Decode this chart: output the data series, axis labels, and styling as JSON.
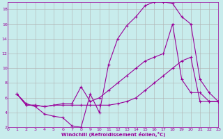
{
  "bg_color": "#c8ecec",
  "line_color": "#990099",
  "grid_color": "#b0b0b0",
  "xlabel": "Windchill (Refroidissement éolien,°C)",
  "xlabel_color": "#990099",
  "xlim": [
    0,
    23
  ],
  "ylim": [
    2,
    19
  ],
  "yticks": [
    2,
    4,
    6,
    8,
    10,
    12,
    14,
    16,
    18
  ],
  "xticks": [
    0,
    1,
    2,
    3,
    4,
    5,
    6,
    7,
    8,
    9,
    10,
    11,
    12,
    13,
    14,
    15,
    16,
    17,
    18,
    19,
    20,
    21,
    22,
    23
  ],
  "line1_x": [
    1,
    2,
    3,
    4,
    5,
    6,
    7,
    8,
    9,
    10,
    11,
    12,
    13,
    14,
    15,
    16,
    17,
    18,
    19,
    20,
    21,
    22,
    23
  ],
  "line1_y": [
    6.5,
    5.2,
    4.8,
    3.8,
    3.5,
    3.3,
    2.2,
    2.0,
    6.5,
    4.0,
    10.5,
    14.0,
    15.8,
    17.0,
    18.5,
    19.0,
    19.0,
    18.8,
    17.0,
    16.0,
    8.5,
    6.7,
    5.5
  ],
  "line2_x": [
    1,
    2,
    3,
    4,
    5,
    6,
    7,
    8,
    9,
    10,
    11,
    12,
    13,
    14,
    15,
    16,
    17,
    18,
    19,
    20,
    21,
    22,
    23
  ],
  "line2_y": [
    6.5,
    5.0,
    5.0,
    4.8,
    5.0,
    5.2,
    5.2,
    7.5,
    5.5,
    6.0,
    7.0,
    8.0,
    9.0,
    10.0,
    11.0,
    11.5,
    12.0,
    16.0,
    8.5,
    6.7,
    6.7,
    5.5,
    5.5
  ],
  "line3_x": [
    1,
    2,
    3,
    4,
    5,
    6,
    7,
    8,
    9,
    10,
    11,
    12,
    13,
    14,
    15,
    16,
    17,
    18,
    19,
    20,
    21,
    22,
    23
  ],
  "line3_y": [
    6.5,
    5.0,
    5.0,
    4.8,
    5.0,
    5.0,
    5.0,
    5.0,
    5.0,
    5.0,
    5.0,
    5.2,
    5.5,
    6.0,
    7.0,
    8.0,
    9.0,
    10.0,
    11.0,
    11.5,
    5.5,
    5.5,
    5.5
  ]
}
